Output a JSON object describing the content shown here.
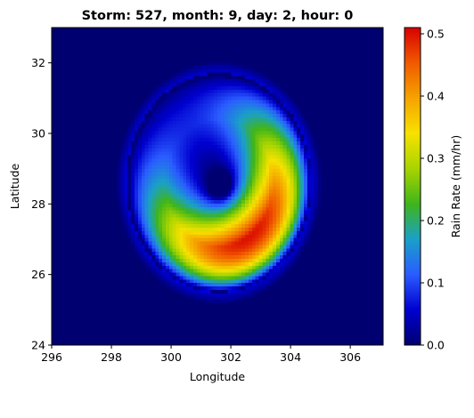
{
  "chart_data": {
    "type": "heatmap",
    "title": "Storm: 527, month: 9, day: 2, hour: 0",
    "xlabel": "Longitude",
    "ylabel": "Latitude",
    "xlim": [
      296,
      307.1
    ],
    "ylim": [
      24,
      33
    ],
    "xticks": [
      296,
      298,
      300,
      302,
      304,
      306
    ],
    "yticks": [
      24,
      26,
      28,
      30,
      32
    ],
    "xtick_labels": [
      "296",
      "298",
      "300",
      "302",
      "304",
      "306"
    ],
    "ytick_labels": [
      "24",
      "26",
      "28",
      "30",
      "32"
    ],
    "colorbar": {
      "label": "Rain Rate (mm/hr)",
      "range": [
        0,
        0.51
      ],
      "ticks": [
        0,
        0.1,
        0.2,
        0.3,
        0.4,
        0.5
      ],
      "tick_labels": [
        "0.0",
        "0.1",
        "0.2",
        "0.3",
        "0.4",
        "0.5"
      ],
      "colors": [
        "#000070",
        "#0000d0",
        "#2a5cff",
        "#1aa0c8",
        "#3fb51a",
        "#a8d400",
        "#f6e200",
        "#f5a300",
        "#f05a00",
        "#d80000"
      ]
    },
    "field": {
      "center": [
        301.6,
        28.6
      ],
      "eye_radius_deg": 0.75,
      "max_rain_radius_deg": 1.8,
      "outer_edge_radius_deg": 3.1,
      "max_rain_rate": 0.5,
      "max_rain_location": [
        302.6,
        27.1
      ],
      "background_rain_rate": 0.0
    }
  }
}
